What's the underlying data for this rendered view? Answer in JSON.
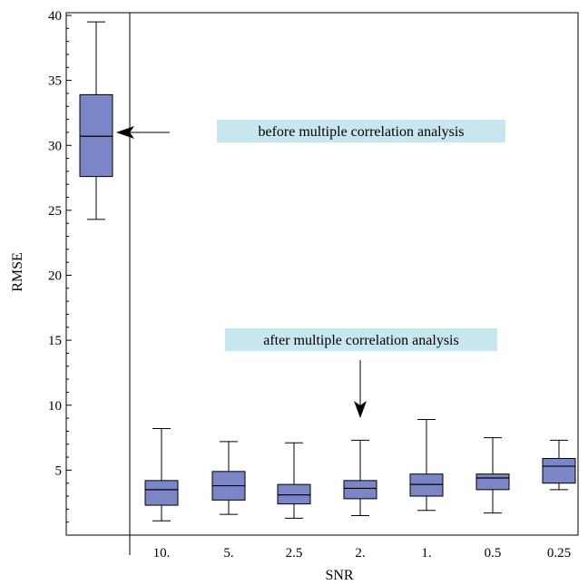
{
  "chart_data": {
    "type": "box",
    "xlabel": "SNR",
    "ylabel": "RMSE",
    "ylim": [
      0,
      40
    ],
    "yticks": [
      5,
      10,
      15,
      20,
      25,
      30,
      35,
      40
    ],
    "grid": false,
    "box_color": "#7b86c6",
    "annotation_bg": "#c9e6ee",
    "groups": [
      {
        "label": "",
        "min": 24.3,
        "q1": 27.6,
        "median": 30.7,
        "q3": 33.9,
        "max": 39.5
      },
      {
        "label": "10.",
        "min": 1.1,
        "q1": 2.3,
        "median": 3.5,
        "q3": 4.2,
        "max": 8.2
      },
      {
        "label": "5.",
        "min": 1.6,
        "q1": 2.7,
        "median": 3.8,
        "q3": 4.9,
        "max": 7.2
      },
      {
        "label": "2.5",
        "min": 1.3,
        "q1": 2.4,
        "median": 3.1,
        "q3": 3.9,
        "max": 7.1
      },
      {
        "label": "2.",
        "min": 1.5,
        "q1": 2.8,
        "median": 3.6,
        "q3": 4.2,
        "max": 7.3
      },
      {
        "label": "1.",
        "min": 1.9,
        "q1": 3.0,
        "median": 3.9,
        "q3": 4.7,
        "max": 8.9
      },
      {
        "label": "0.5",
        "min": 1.7,
        "q1": 3.5,
        "median": 4.4,
        "q3": 4.7,
        "max": 7.5
      },
      {
        "label": "0.25",
        "min": 3.5,
        "q1": 4.0,
        "median": 5.3,
        "q3": 5.9,
        "max": 7.3
      }
    ],
    "annotations": [
      {
        "text": "before multiple correlation analysis"
      },
      {
        "text": "after multiple correlation analysis"
      }
    ]
  }
}
